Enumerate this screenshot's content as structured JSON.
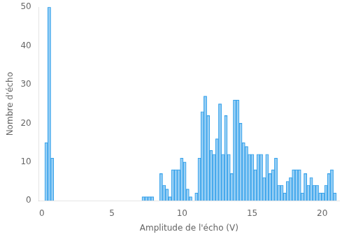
{
  "chart_data": {
    "type": "histogram",
    "xlabel": "Amplitude de l'écho (V)",
    "ylabel": "Nombre d'écho",
    "bins": [
      0,
      0.21,
      0.42,
      0.63,
      0.84,
      1.05,
      1.26,
      1.47,
      1.68,
      1.89,
      2.1,
      2.31,
      2.52,
      2.73,
      2.94,
      3.15,
      3.36,
      3.57,
      3.78,
      3.99,
      4.2,
      4.41,
      4.62,
      4.83,
      5.04,
      5.25,
      5.46,
      5.67,
      5.88,
      6.09,
      6.3,
      6.51,
      6.72,
      6.93,
      7.14,
      7.35,
      7.56,
      7.77,
      7.98,
      8.19,
      8.4,
      8.61,
      8.82,
      9.03,
      9.24,
      9.45,
      9.66,
      9.87,
      10.08,
      10.29,
      10.5,
      10.71,
      10.92,
      11.13,
      11.34,
      11.55,
      11.76,
      11.97,
      12.18,
      12.39,
      12.6,
      12.81,
      13.02,
      13.23,
      13.44,
      13.65,
      13.86,
      14.07,
      14.28,
      14.49,
      14.7,
      14.91,
      15.12,
      15.33,
      15.54,
      15.75,
      15.96,
      16.17,
      16.38,
      16.59,
      16.8,
      17.01,
      17.22,
      17.43,
      17.64,
      17.85,
      18.06,
      18.27,
      18.48,
      18.69,
      18.9,
      19.11,
      19.32,
      19.53,
      19.74,
      19.95,
      20.16,
      20.37,
      20.58,
      20.79,
      21
    ],
    "values": [
      0,
      15,
      50,
      11,
      0,
      0,
      0,
      0,
      0,
      0,
      0,
      0,
      0,
      0,
      0,
      0,
      0,
      0,
      0,
      0,
      0,
      0,
      0,
      0,
      0,
      0,
      0,
      0,
      0,
      0,
      0,
      0,
      0,
      0,
      1,
      1,
      1,
      1,
      0,
      0,
      7,
      4,
      3,
      1,
      8,
      8,
      8,
      11,
      10,
      3,
      1,
      0,
      2,
      11,
      23,
      27,
      22,
      13,
      12,
      16,
      25,
      12,
      22,
      12,
      7,
      26,
      26,
      20,
      15,
      14,
      12,
      12,
      8,
      12,
      12,
      6,
      12,
      7,
      8,
      11,
      4,
      4,
      2,
      5,
      6,
      8,
      8,
      8,
      2,
      7,
      4,
      6,
      4,
      4,
      2,
      2,
      4,
      7,
      8,
      2
    ],
    "xlim": [
      -0.21,
      21.21
    ],
    "ylim": [
      0,
      50
    ],
    "xticks": [
      0,
      5,
      10,
      15,
      20
    ],
    "yticks": [
      0,
      10,
      20,
      30,
      40,
      50
    ],
    "grid": false
  }
}
